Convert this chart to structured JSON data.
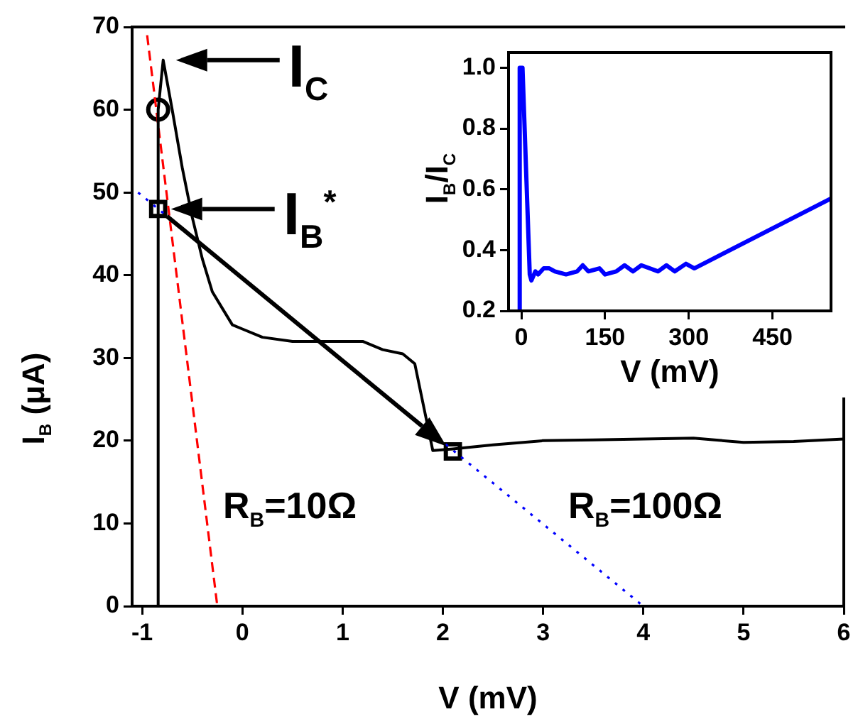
{
  "chart_data": [
    {
      "type": "line",
      "xlabel": "V (mV)",
      "ylabel": "I$_{B}$ (μA)",
      "xlim": [
        -1.1,
        6
      ],
      "ylim": [
        0,
        70
      ],
      "xticks": [
        -1,
        0,
        1,
        2,
        3,
        4,
        5,
        6
      ],
      "yticks": [
        0,
        10,
        20,
        30,
        40,
        50,
        60,
        70
      ],
      "annotations": [
        {
          "text": "I$_{C}$",
          "x": -0.79,
          "y": 66
        },
        {
          "text": "I$_{B}$$^{*}$",
          "x": -0.84,
          "y": 48
        },
        "R$_{B}$=10Ω",
        "R$_{B}$=100Ω"
      ],
      "series": [
        {
          "type": "line",
          "color": "#000000",
          "x": [
            -0.84,
            -0.84,
            -0.79,
            -0.7,
            -0.6,
            -0.5,
            -0.4,
            -0.3,
            -0.2,
            -0.1,
            0,
            0.2,
            0.5,
            0.8,
            1.2,
            1.4,
            1.6,
            1.72,
            1.9,
            2.1,
            2.5,
            3,
            3.5,
            4,
            4.5,
            5,
            5.5,
            6
          ],
          "values": [
            0,
            60,
            66,
            60,
            53,
            47,
            42,
            38,
            36,
            34,
            33.5,
            32.5,
            32,
            32,
            32,
            31,
            30.5,
            29.3,
            18.8,
            19,
            19.5,
            20,
            20.1,
            20.2,
            20.3,
            19.8,
            19.9,
            20.2
          ]
        },
        {
          "type": "line",
          "color": "#ff0000",
          "line_style": "dashed",
          "x": [
            -0.95,
            -0.25
          ],
          "values": [
            69,
            0
          ]
        },
        {
          "type": "line",
          "color": "#0000ff",
          "line_style": "dotted",
          "x": [
            -1.04,
            4
          ],
          "values": [
            50,
            0
          ]
        },
        {
          "type": "scatter",
          "color": "#000000",
          "marker": "circle",
          "x": [
            -0.84
          ],
          "values": [
            60
          ]
        },
        {
          "type": "scatter",
          "color": "#000000",
          "marker": "square",
          "x": [
            -0.84,
            2.1
          ],
          "values": [
            48,
            18.7
          ]
        }
      ]
    },
    {
      "type": "line",
      "xlabel": "V (mV)",
      "ylabel": "I$_{B}$/I$_{C}$",
      "xlim": [
        -23,
        555
      ],
      "ylim": [
        0.2,
        1.05
      ],
      "xticks": [
        0,
        150,
        300,
        450
      ],
      "yticks": [
        0.2,
        0.4,
        0.6,
        0.8,
        {
          "value": 1,
          "label": "1.0"
        }
      ],
      "series": [
        {
          "type": "line",
          "color": "#0000ff",
          "x": [
            -5,
            -3,
            2,
            15,
            18,
            25,
            30,
            40,
            50,
            60,
            80,
            100,
            110,
            120,
            140,
            150,
            170,
            185,
            200,
            215,
            230,
            245,
            260,
            275,
            295,
            310,
            555
          ],
          "values": [
            0.2,
            1.0,
            1.0,
            0.32,
            0.3,
            0.33,
            0.32,
            0.34,
            0.34,
            0.33,
            0.32,
            0.33,
            0.35,
            0.33,
            0.34,
            0.32,
            0.33,
            0.35,
            0.33,
            0.35,
            0.34,
            0.33,
            0.35,
            0.33,
            0.355,
            0.34,
            0.57
          ]
        }
      ]
    }
  ]
}
